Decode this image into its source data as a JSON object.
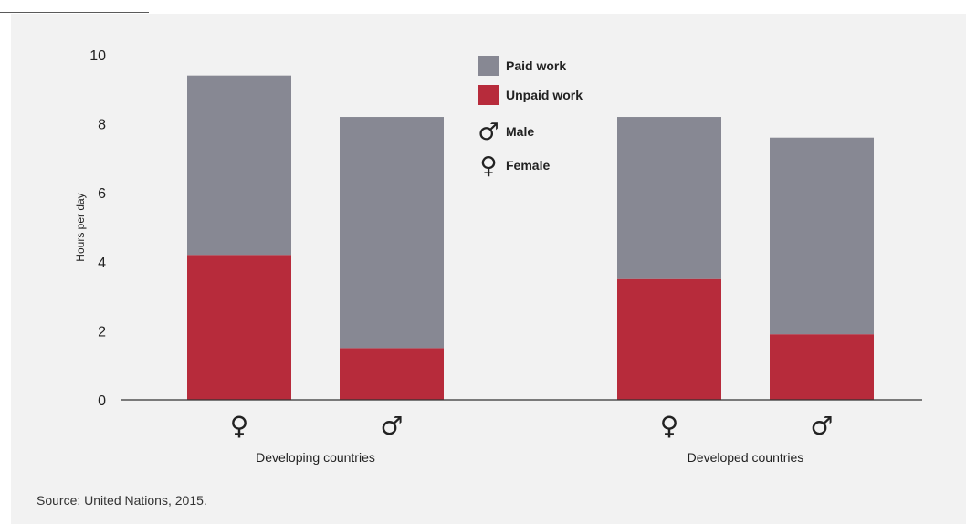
{
  "chart_data": {
    "type": "bar",
    "stacked": true,
    "ylabel": "Hours per day",
    "ylim": [
      0,
      10
    ],
    "yticks": [
      0,
      2,
      4,
      6,
      8,
      10
    ],
    "groups": [
      {
        "label": "Developing countries",
        "bars": [
          {
            "sex": "female",
            "symbol": "♀",
            "unpaid": 4.2,
            "paid": 5.2
          },
          {
            "sex": "male",
            "symbol": "♂",
            "unpaid": 1.5,
            "paid": 6.7
          }
        ]
      },
      {
        "label": "Developed countries",
        "bars": [
          {
            "sex": "female",
            "symbol": "♀",
            "unpaid": 3.5,
            "paid": 4.7
          },
          {
            "sex": "male",
            "symbol": "♂",
            "unpaid": 1.9,
            "paid": 5.7
          }
        ]
      }
    ],
    "legend": {
      "placement": "top-center",
      "items": [
        {
          "key": "paid",
          "label": "Paid work",
          "color": "#878893"
        },
        {
          "key": "unpaid",
          "label": "Unpaid work",
          "color": "#b72b3b"
        },
        {
          "key": "male",
          "label": "Male",
          "symbol": "♂"
        },
        {
          "key": "female",
          "label": "Female",
          "symbol": "♀"
        }
      ]
    },
    "colors": {
      "paid": "#878893",
      "unpaid": "#b72b3b",
      "axis": "#333333"
    }
  },
  "source": "Source: United Nations, 2015."
}
